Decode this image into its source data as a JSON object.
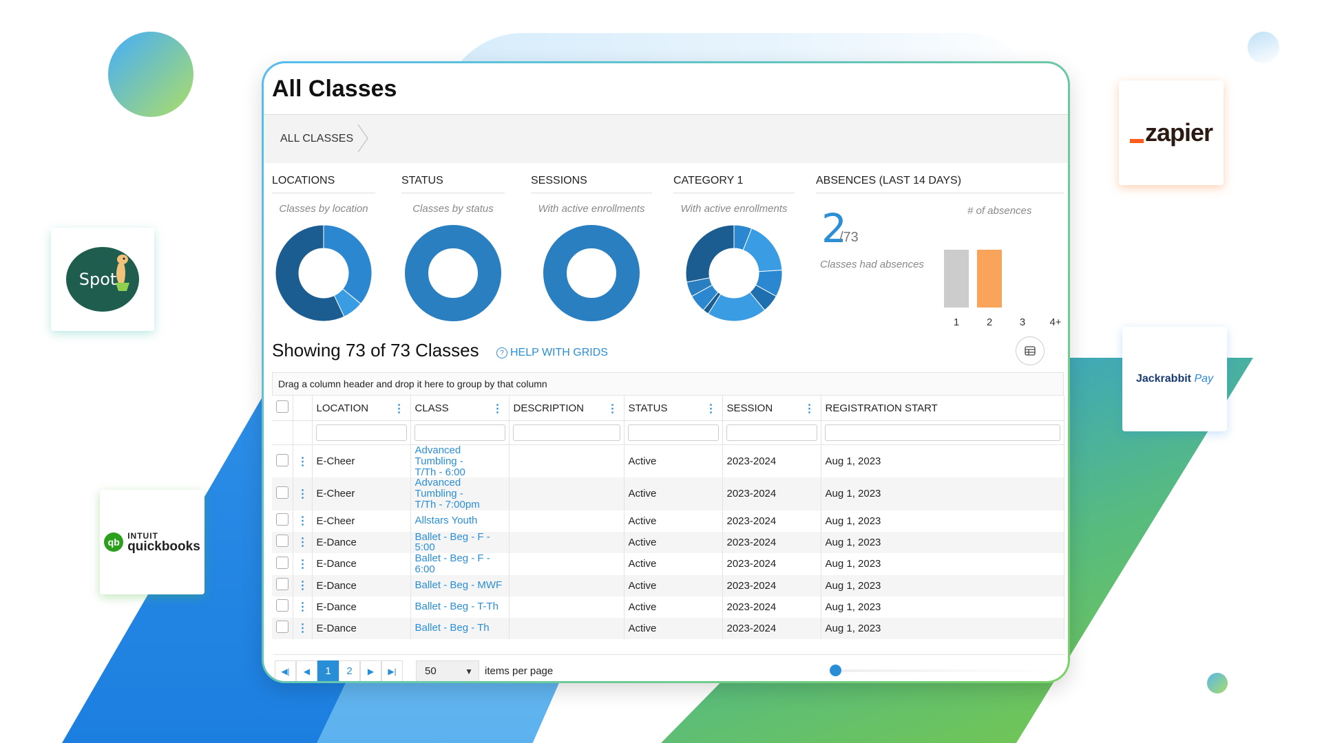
{
  "page": {
    "title": "All Classes",
    "breadcrumb": "ALL CLASSES"
  },
  "widgets": {
    "locations": {
      "heading": "LOCATIONS",
      "subtitle": "Classes by location"
    },
    "status": {
      "heading": "STATUS",
      "subtitle": "Classes by status"
    },
    "sessions": {
      "heading": "SESSIONS",
      "subtitle": "With active enrollments"
    },
    "category": {
      "heading": "CATEGORY 1",
      "subtitle": "With active enrollments"
    },
    "absences": {
      "heading": "ABSENCES (LAST 14 DAYS)",
      "count": "2",
      "total": "/73",
      "caption": "Classes had absences",
      "axis_title": "# of absences"
    }
  },
  "chart_data": [
    {
      "type": "pie",
      "name": "Classes by location",
      "values": [
        36,
        7,
        57
      ],
      "colors": [
        "#2b87cf",
        "#3a9de3",
        "#1b5d91"
      ]
    },
    {
      "type": "pie",
      "name": "Classes by status",
      "values": [
        100
      ],
      "colors": [
        "#2a7fc1"
      ]
    },
    {
      "type": "pie",
      "name": "With active enrollments",
      "values": [
        100
      ],
      "colors": [
        "#2a7fc1"
      ]
    },
    {
      "type": "pie",
      "name": "With active enrollments",
      "values": [
        6,
        18,
        9,
        6,
        20,
        2,
        6,
        5,
        28
      ],
      "colors": [
        "#2b87cf",
        "#3a9de3",
        "#2b87cf",
        "#1f6fae",
        "#3a9de3",
        "#1b5d91",
        "#2b87cf",
        "#2a7fc1",
        "#1b5d91"
      ]
    },
    {
      "type": "bar",
      "categories": [
        "1",
        "2",
        "3",
        "4+"
      ],
      "values": [
        1,
        1,
        0,
        0
      ],
      "colors": [
        "#cccccc",
        "#f9a45a",
        "#cccccc",
        "#cccccc"
      ],
      "ylim": [
        0,
        1
      ]
    }
  ],
  "grid": {
    "showing": "Showing 73 of 73 Classes",
    "help": "HELP WITH GRIDS",
    "group_hint": "Drag a column header and drop it here to group by that column",
    "columns": [
      "LOCATION",
      "CLASS",
      "DESCRIPTION",
      "STATUS",
      "SESSION",
      "REGISTRATION START"
    ],
    "rows": [
      {
        "location": "E-Cheer",
        "class_l1": "Advanced Tumbling -",
        "class_l2": "T/Th - 6:00",
        "status": "Active",
        "session": "2023-2024",
        "reg": "Aug 1, 2023"
      },
      {
        "location": "E-Cheer",
        "class_l1": "Advanced Tumbling -",
        "class_l2": "T/Th - 7:00pm",
        "status": "Active",
        "session": "2023-2024",
        "reg": "Aug 1, 2023"
      },
      {
        "location": "E-Cheer",
        "class_l1": "Allstars Youth",
        "class_l2": "",
        "status": "Active",
        "session": "2023-2024",
        "reg": "Aug 1, 2023"
      },
      {
        "location": "E-Dance",
        "class_l1": "Ballet - Beg - F - 5:00",
        "class_l2": "",
        "status": "Active",
        "session": "2023-2024",
        "reg": "Aug 1, 2023"
      },
      {
        "location": "E-Dance",
        "class_l1": "Ballet - Beg - F - 6:00",
        "class_l2": "",
        "status": "Active",
        "session": "2023-2024",
        "reg": "Aug 1, 2023"
      },
      {
        "location": "E-Dance",
        "class_l1": "Ballet - Beg - MWF",
        "class_l2": "",
        "status": "Active",
        "session": "2023-2024",
        "reg": "Aug 1, 2023"
      },
      {
        "location": "E-Dance",
        "class_l1": "Ballet - Beg - T-Th",
        "class_l2": "",
        "status": "Active",
        "session": "2023-2024",
        "reg": "Aug 1, 2023"
      },
      {
        "location": "E-Dance",
        "class_l1": "Ballet - Beg - Th",
        "class_l2": "",
        "status": "Active",
        "session": "2023-2024",
        "reg": "Aug 1, 2023"
      }
    ]
  },
  "pager": {
    "pages": [
      "1",
      "2"
    ],
    "current": "1",
    "items_per_page": "50",
    "items_label": "items per page"
  },
  "logos": {
    "spot": "Spot",
    "qb_intuit": "INTUIT",
    "qb_name": "quickbooks",
    "qb_mark": "qb",
    "zapier": "zapier",
    "jackrabbit": "Jackrabbit",
    "jackrabbit_pay": "Pay"
  },
  "icons": {
    "breadcrumb": "chevron-right-icon",
    "help": "question-circle-icon",
    "grid_toggle": "table-icon",
    "col_menu": "vertical-dots-icon"
  }
}
